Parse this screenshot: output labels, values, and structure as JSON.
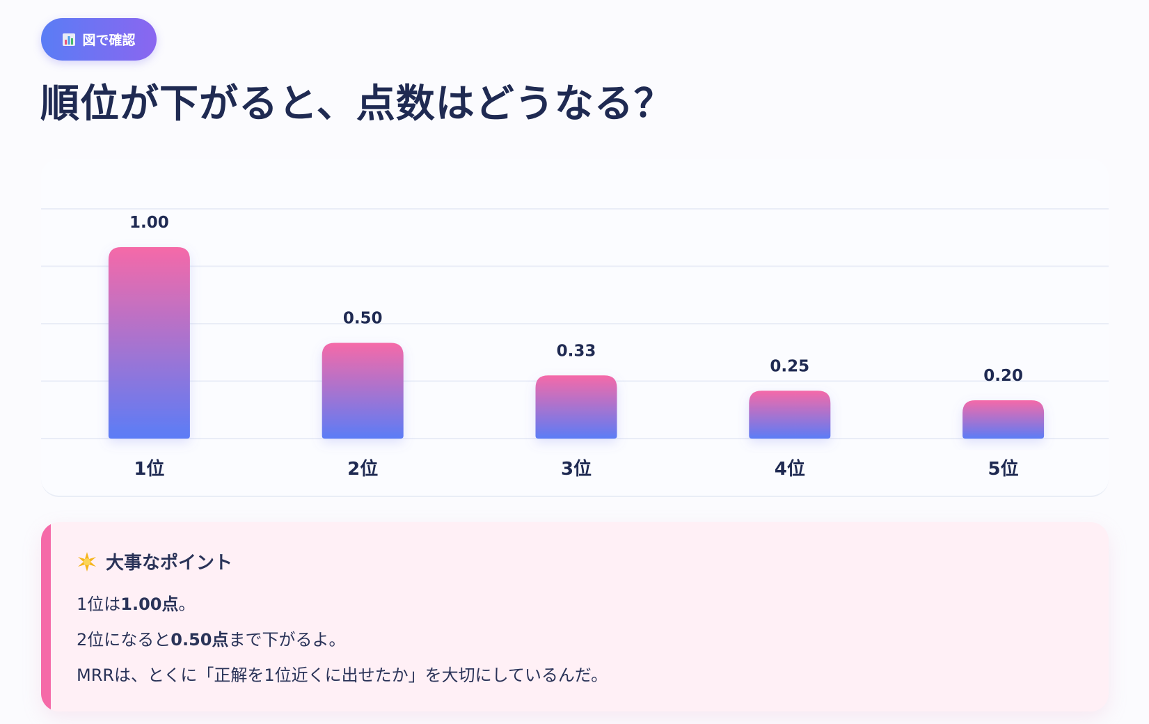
{
  "badge": {
    "icon": "bar-chart-icon",
    "label": "図で確認"
  },
  "title": "順位が下がると、点数はどうなる？",
  "chart_data": {
    "type": "bar",
    "categories": [
      "1位",
      "2位",
      "3位",
      "4位",
      "5位"
    ],
    "values": [
      1.0,
      0.5,
      0.33,
      0.25,
      0.2
    ],
    "value_labels": [
      "1.00",
      "0.50",
      "0.33",
      "0.25",
      "0.20"
    ],
    "ylim": [
      0,
      1.2
    ],
    "grid": true,
    "bar_gradient": [
      "#f56aa8",
      "#5b7cf6"
    ]
  },
  "point": {
    "icon": "sparkle-icon",
    "heading": "大事なポイント",
    "lines": [
      {
        "pre": "1位は",
        "bold": "1.00点",
        "post": "。"
      },
      {
        "pre": "2位になると",
        "bold": "0.50点",
        "post": "まで下がるよ。"
      },
      {
        "pre": "MRRは、とくに「正解を1位近くに出せたか」を大切にしているんだ。",
        "bold": "",
        "post": ""
      }
    ]
  },
  "colors": {
    "accent_pink": "#f56aa8",
    "accent_blue": "#5b7cf6",
    "text_dark": "#1f2a52"
  }
}
